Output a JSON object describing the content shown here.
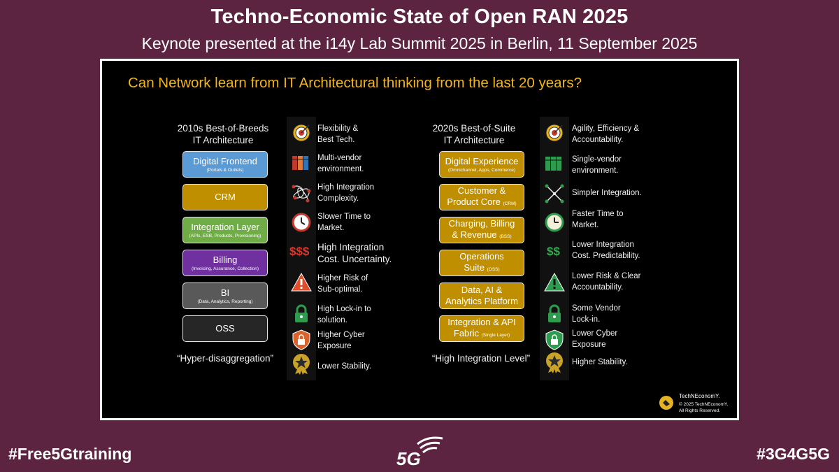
{
  "header": {
    "title": "Techno-Economic State of Open RAN 2025",
    "subtitle": "Keynote presented at the i14y Lab Summit 2025 in Berlin, 11 September 2025"
  },
  "slide": {
    "question": "Can Network learn from IT Architectural thinking from the last 20 years?",
    "left": {
      "heading_line1": "2010s Best-of-Breeds",
      "heading_line2": "IT Architecture",
      "quote": "“Hyper-disaggregation”",
      "boxes": [
        {
          "title": "Digital Frontend",
          "sub": "(Portals & Outlets)",
          "color": "#5b9bd5"
        },
        {
          "title": "CRM",
          "sub": "",
          "color": "#bf8f00"
        },
        {
          "title": "Integration Layer",
          "sub": "(APIs, ESB, Products, Provisioning)",
          "color": "#70ad47"
        },
        {
          "title": "Billing",
          "sub": "(Invoicing, Assurance, Collection)",
          "color": "#7030a0"
        },
        {
          "title": "BI",
          "sub": "(Data, Analytics, Reporting)",
          "color": "#595959"
        },
        {
          "title": "OSS",
          "sub": "",
          "color": "#262626"
        }
      ],
      "items": [
        {
          "icon": "target-icon",
          "line1": "Flexibility &",
          "line2": "Best Tech."
        },
        {
          "icon": "books-icon",
          "line1": "Multi-vendor",
          "line2": "environment."
        },
        {
          "icon": "tangled-network-icon",
          "line1": "High Integration",
          "line2": "Complexity."
        },
        {
          "icon": "clock-icon",
          "line1": "Slower Time to",
          "line2": "Market."
        },
        {
          "icon": "dollar-icon",
          "symbol": "$$$",
          "line1": "High Integration",
          "line2": "Cost. Uncertainty."
        },
        {
          "icon": "warning-icon",
          "line1": "Higher Risk of",
          "line2": "Sub-optimal."
        },
        {
          "icon": "lock-icon",
          "line1": "High Lock-in to",
          "line2": "solution."
        },
        {
          "icon": "shield-lock-icon",
          "line1": "Higher Cyber",
          "line2": "Exposure"
        },
        {
          "icon": "star-badge-icon",
          "line1": "Lower Stability.",
          "line2": ""
        }
      ]
    },
    "right": {
      "heading_line1": "2020s Best-of-Suite",
      "heading_line2": "IT Architecture",
      "quote": "“High Integration Level”",
      "boxes": [
        {
          "title": "Digital Experience",
          "sub": "(Omnichannel, Apps, Commerce)"
        },
        {
          "title": "Customer &",
          "title2": "Product Core",
          "sub": "(CRM)"
        },
        {
          "title": "Charging, Billing",
          "title2": "& Revenue",
          "sub": "(BSS)"
        },
        {
          "title": "Operations",
          "title2": "Suite",
          "sub": "(OSS)"
        },
        {
          "title": "Data, AI &",
          "title2": "Analytics Platform",
          "sub": ""
        },
        {
          "title": "Integration & API",
          "title2": "Fabric",
          "sub": "(Single Layer)"
        }
      ],
      "items": [
        {
          "icon": "target-icon",
          "line1": "Agility, Efficiency &",
          "line2": "Accountability."
        },
        {
          "icon": "books-icon",
          "line1": "Single-vendor",
          "line2": "environment."
        },
        {
          "icon": "simple-network-icon",
          "line1": "Simpler Integration.",
          "line2": ""
        },
        {
          "icon": "clock-icon",
          "line1": "Faster Time to",
          "line2": "Market."
        },
        {
          "icon": "dollar-icon",
          "symbol": "$$",
          "line1": "Lower Integration",
          "line2": "Cost. Predictability."
        },
        {
          "icon": "warning-icon",
          "line1": "Lower Risk & Clear",
          "line2": "Accountability."
        },
        {
          "icon": "lock-icon",
          "line1": "Some Vendor",
          "line2": "Lock-in."
        },
        {
          "icon": "shield-lock-icon",
          "line1": "Lower Cyber",
          "line2": "Exposure"
        },
        {
          "icon": "star-badge-icon",
          "line1": "Higher Stability.",
          "line2": ""
        }
      ]
    },
    "logo": {
      "brand": "TechNEconomY.",
      "copyright": "© 2025 TechNEconomY.",
      "rights": "All Rights Reserved.",
      "mark_text": "TechNEconomY"
    }
  },
  "footer": {
    "left_hashtag": "#Free5Gtraining",
    "right_hashtag": "#3G4G5G",
    "logo_text": "5G"
  },
  "colors": {
    "background": "#5c2440",
    "question": "#f2b51c",
    "suite_box": "#bf8f00",
    "red_icon": "#d9382b",
    "green_icon": "#3aa655"
  }
}
